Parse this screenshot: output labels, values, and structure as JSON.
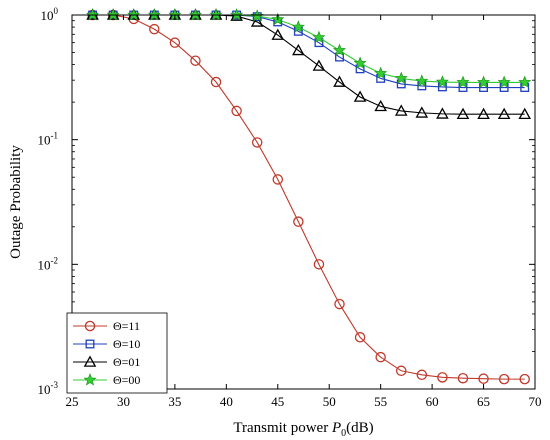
{
  "chart_data": {
    "type": "line",
    "xlabel": "Transmit power ",
    "xlabel_var": "P",
    "xlabel_sub": "0",
    "xlabel_unit": "(dB)",
    "ylabel": "Outage Probability",
    "xlim": [
      25,
      70
    ],
    "ylim": [
      0.001,
      1
    ],
    "yscale": "log",
    "x_ticks": [
      25,
      30,
      35,
      40,
      45,
      50,
      55,
      60,
      65,
      70
    ],
    "y_ticks": [
      {
        "value": 1,
        "base": "10",
        "exp": "0"
      },
      {
        "value": 0.1,
        "base": "10",
        "exp": "-1"
      },
      {
        "value": 0.01,
        "base": "10",
        "exp": "-2"
      },
      {
        "value": 0.001,
        "base": "10",
        "exp": "-3"
      }
    ],
    "grid": false,
    "legend_position": "bottom-left",
    "x": [
      27,
      29,
      31,
      33,
      35,
      37,
      39,
      41,
      43,
      45,
      47,
      49,
      51,
      53,
      55,
      57,
      59,
      61,
      63,
      65,
      67,
      69
    ],
    "series": [
      {
        "name": "Θ=11",
        "color": "#c0392b",
        "marker": "circle",
        "values": [
          1.0,
          1.0,
          0.93,
          0.77,
          0.6,
          0.43,
          0.29,
          0.17,
          0.095,
          0.048,
          0.022,
          0.01,
          0.0048,
          0.0026,
          0.0018,
          0.0014,
          0.0013,
          0.00124,
          0.00122,
          0.00121,
          0.0012,
          0.0012
        ]
      },
      {
        "name": "Θ=10",
        "color": "#1f3fbf",
        "marker": "square",
        "values": [
          1.0,
          1.0,
          1.0,
          1.0,
          1.0,
          1.0,
          1.0,
          1.0,
          0.97,
          0.88,
          0.74,
          0.6,
          0.46,
          0.37,
          0.31,
          0.28,
          0.27,
          0.265,
          0.262,
          0.262,
          0.262,
          0.262
        ]
      },
      {
        "name": "Θ=01",
        "color": "#000000",
        "marker": "triangle",
        "values": [
          1.0,
          1.0,
          1.0,
          1.0,
          1.0,
          1.0,
          1.0,
          0.98,
          0.88,
          0.69,
          0.52,
          0.39,
          0.29,
          0.22,
          0.185,
          0.17,
          0.164,
          0.161,
          0.16,
          0.16,
          0.16,
          0.16
        ]
      },
      {
        "name": "Θ=00",
        "color": "#33cc33",
        "marker": "star",
        "values": [
          1.0,
          1.0,
          1.0,
          1.0,
          1.0,
          1.0,
          1.0,
          1.0,
          0.98,
          0.92,
          0.8,
          0.66,
          0.52,
          0.41,
          0.34,
          0.31,
          0.295,
          0.29,
          0.288,
          0.288,
          0.288,
          0.288
        ]
      }
    ]
  }
}
